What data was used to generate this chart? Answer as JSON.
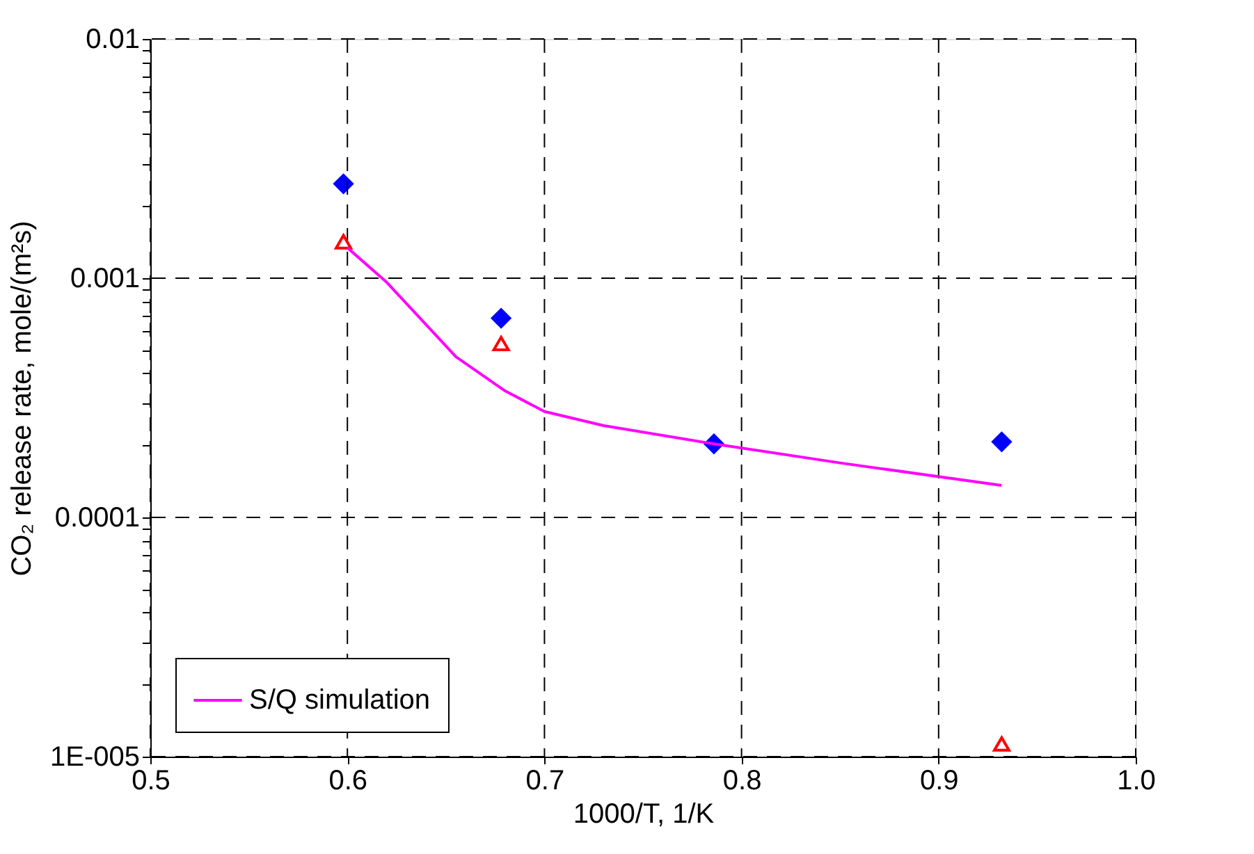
{
  "chart_data": {
    "type": "scatter",
    "xlabel": "1000/T, 1/K",
    "ylabel": "CO₂ release rate, mole/(m²s)",
    "series": [
      {
        "color": "#0000ff",
        "marker": "diamond",
        "x": [
          0.598,
          0.678,
          0.786,
          0.932
        ],
        "values": [
          0.00248,
          0.00068,
          0.000203,
          0.000207
        ]
      },
      {
        "color": "#ff0000",
        "marker": "triangle",
        "x": [
          0.598,
          0.678,
          0.932
        ],
        "values": [
          0.00142,
          0.000533,
          1.13e-05
        ]
      },
      {
        "name": "S/Q simulation",
        "type": "line",
        "color": "#ff00ff",
        "marker": "none",
        "line_style": "solid",
        "x": [
          0.6,
          0.62,
          0.655,
          0.68,
          0.7,
          0.73,
          0.786,
          0.85,
          0.932
        ],
        "values": [
          0.00134,
          0.00096,
          0.00047,
          0.000338,
          0.000277,
          0.000242,
          0.000203,
          0.000169,
          0.000136
        ]
      }
    ],
    "xlim": [
      0.5,
      1.0
    ],
    "xticks": [
      0.5,
      0.6,
      0.7,
      0.8,
      0.9,
      {
        "value": 1.0,
        "label": "1.0"
      }
    ],
    "ylim": [
      1e-05,
      0.01
    ],
    "yticks": [
      {
        "value": 1e-05,
        "label": "1E-005"
      },
      {
        "value": 2e-05,
        "label": null
      },
      {
        "value": 3e-05,
        "label": null
      },
      {
        "value": 4e-05,
        "label": null
      },
      {
        "value": 5e-05,
        "label": null
      },
      {
        "value": 6e-05,
        "label": null
      },
      {
        "value": 7e-05,
        "label": null
      },
      {
        "value": 8e-05,
        "label": null
      },
      {
        "value": 9e-05,
        "label": null
      },
      0.0001,
      {
        "value": 0.0002,
        "label": null
      },
      {
        "value": 0.0003,
        "label": null
      },
      {
        "value": 0.0004,
        "label": null
      },
      {
        "value": 0.0005,
        "label": null
      },
      {
        "value": 0.0006,
        "label": null
      },
      {
        "value": 0.0007,
        "label": null
      },
      {
        "value": 0.0008,
        "label": null
      },
      {
        "value": 0.0009,
        "label": null
      },
      0.001,
      {
        "value": 0.002,
        "label": null
      },
      {
        "value": 0.003,
        "label": null
      },
      {
        "value": 0.004,
        "label": null
      },
      {
        "value": 0.005,
        "label": null
      },
      {
        "value": 0.006,
        "label": null
      },
      {
        "value": 0.007,
        "label": null
      },
      {
        "value": 0.008,
        "label": null
      },
      {
        "value": 0.009,
        "label": null
      },
      0.01
    ],
    "log": "y",
    "grid": true,
    "legend": "bottom left"
  }
}
